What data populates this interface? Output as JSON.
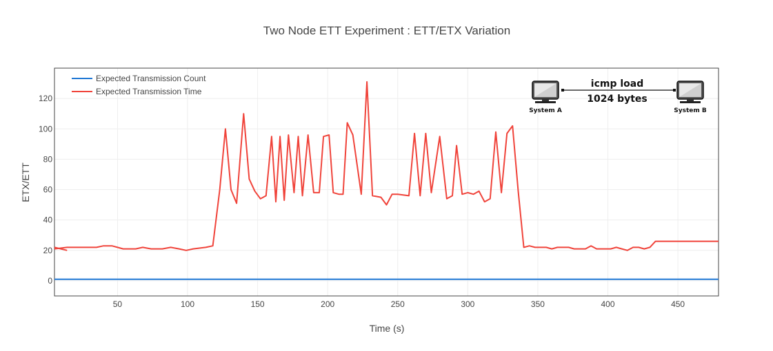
{
  "chart_data": {
    "type": "line",
    "title": "Two Node ETT Experiment : ETT/ETX Variation",
    "xlabel": "Time (s)",
    "ylabel": "ETX/ETT",
    "xlim": [
      5,
      479
    ],
    "ylim": [
      -10,
      140
    ],
    "x_ticks": [
      50,
      100,
      150,
      200,
      250,
      300,
      350,
      400,
      450
    ],
    "y_ticks": [
      0,
      20,
      40,
      60,
      80,
      100,
      120
    ],
    "grid": true,
    "legend_position": "top-left",
    "series": [
      {
        "name": "Expected Transmission Count",
        "color": "#1f77d4",
        "x": [
          5,
          479
        ],
        "y": [
          1,
          1
        ]
      },
      {
        "name": "Expected Transmission Time",
        "color": "#f0433a",
        "x": [
          5,
          14,
          21,
          35,
          40,
          46,
          50,
          54,
          63,
          68,
          74,
          82,
          88,
          94,
          99,
          104,
          113,
          118,
          123,
          127,
          131,
          135,
          140,
          144,
          148,
          152,
          156,
          160,
          163,
          166,
          169,
          172,
          176,
          179,
          182,
          186,
          190,
          194,
          197,
          201,
          204,
          208,
          211,
          214,
          218,
          224,
          228,
          232,
          238,
          242,
          246,
          250,
          258,
          262,
          266,
          270,
          274,
          280,
          285,
          289,
          292,
          296,
          300,
          304,
          308,
          312,
          316,
          320,
          324,
          328,
          332,
          336,
          340,
          344,
          348,
          352,
          356,
          360,
          364,
          368,
          372,
          376,
          384,
          388,
          392,
          398,
          402,
          406,
          410,
          414,
          418,
          422,
          426,
          430,
          434,
          438,
          442,
          446,
          450,
          454,
          458,
          462,
          466,
          470,
          474,
          479
        ],
        "y": [
          21,
          22,
          22,
          22,
          23,
          23,
          22,
          21,
          21,
          22,
          21,
          21,
          22,
          21,
          20,
          21,
          22,
          23,
          60,
          100,
          60,
          51,
          110,
          67,
          59,
          54,
          56,
          95,
          52,
          95,
          53,
          96,
          58,
          95,
          56,
          96,
          58,
          58,
          95,
          96,
          58,
          57,
          57,
          104,
          96,
          57,
          131,
          56,
          55,
          50,
          57,
          57,
          56,
          97,
          56,
          97,
          58,
          95,
          54,
          56,
          89,
          57,
          58,
          57,
          59,
          52,
          54,
          98,
          58,
          97,
          102,
          59,
          22,
          23,
          22,
          22,
          22,
          21,
          22,
          22,
          22,
          21,
          21,
          23,
          21,
          21,
          21,
          22,
          21,
          20,
          22,
          22,
          21,
          22,
          26,
          26,
          26,
          26,
          26,
          26,
          26,
          26,
          26,
          26,
          26,
          26
        ]
      },
      {
        "name": "",
        "color": "#f0433a",
        "x": [
          5,
          14
        ],
        "y": [
          22,
          20
        ]
      }
    ]
  },
  "inset": {
    "node_a": "System A",
    "node_b": "System B",
    "link_line1": "icmp load",
    "link_line2": "1024 bytes"
  }
}
